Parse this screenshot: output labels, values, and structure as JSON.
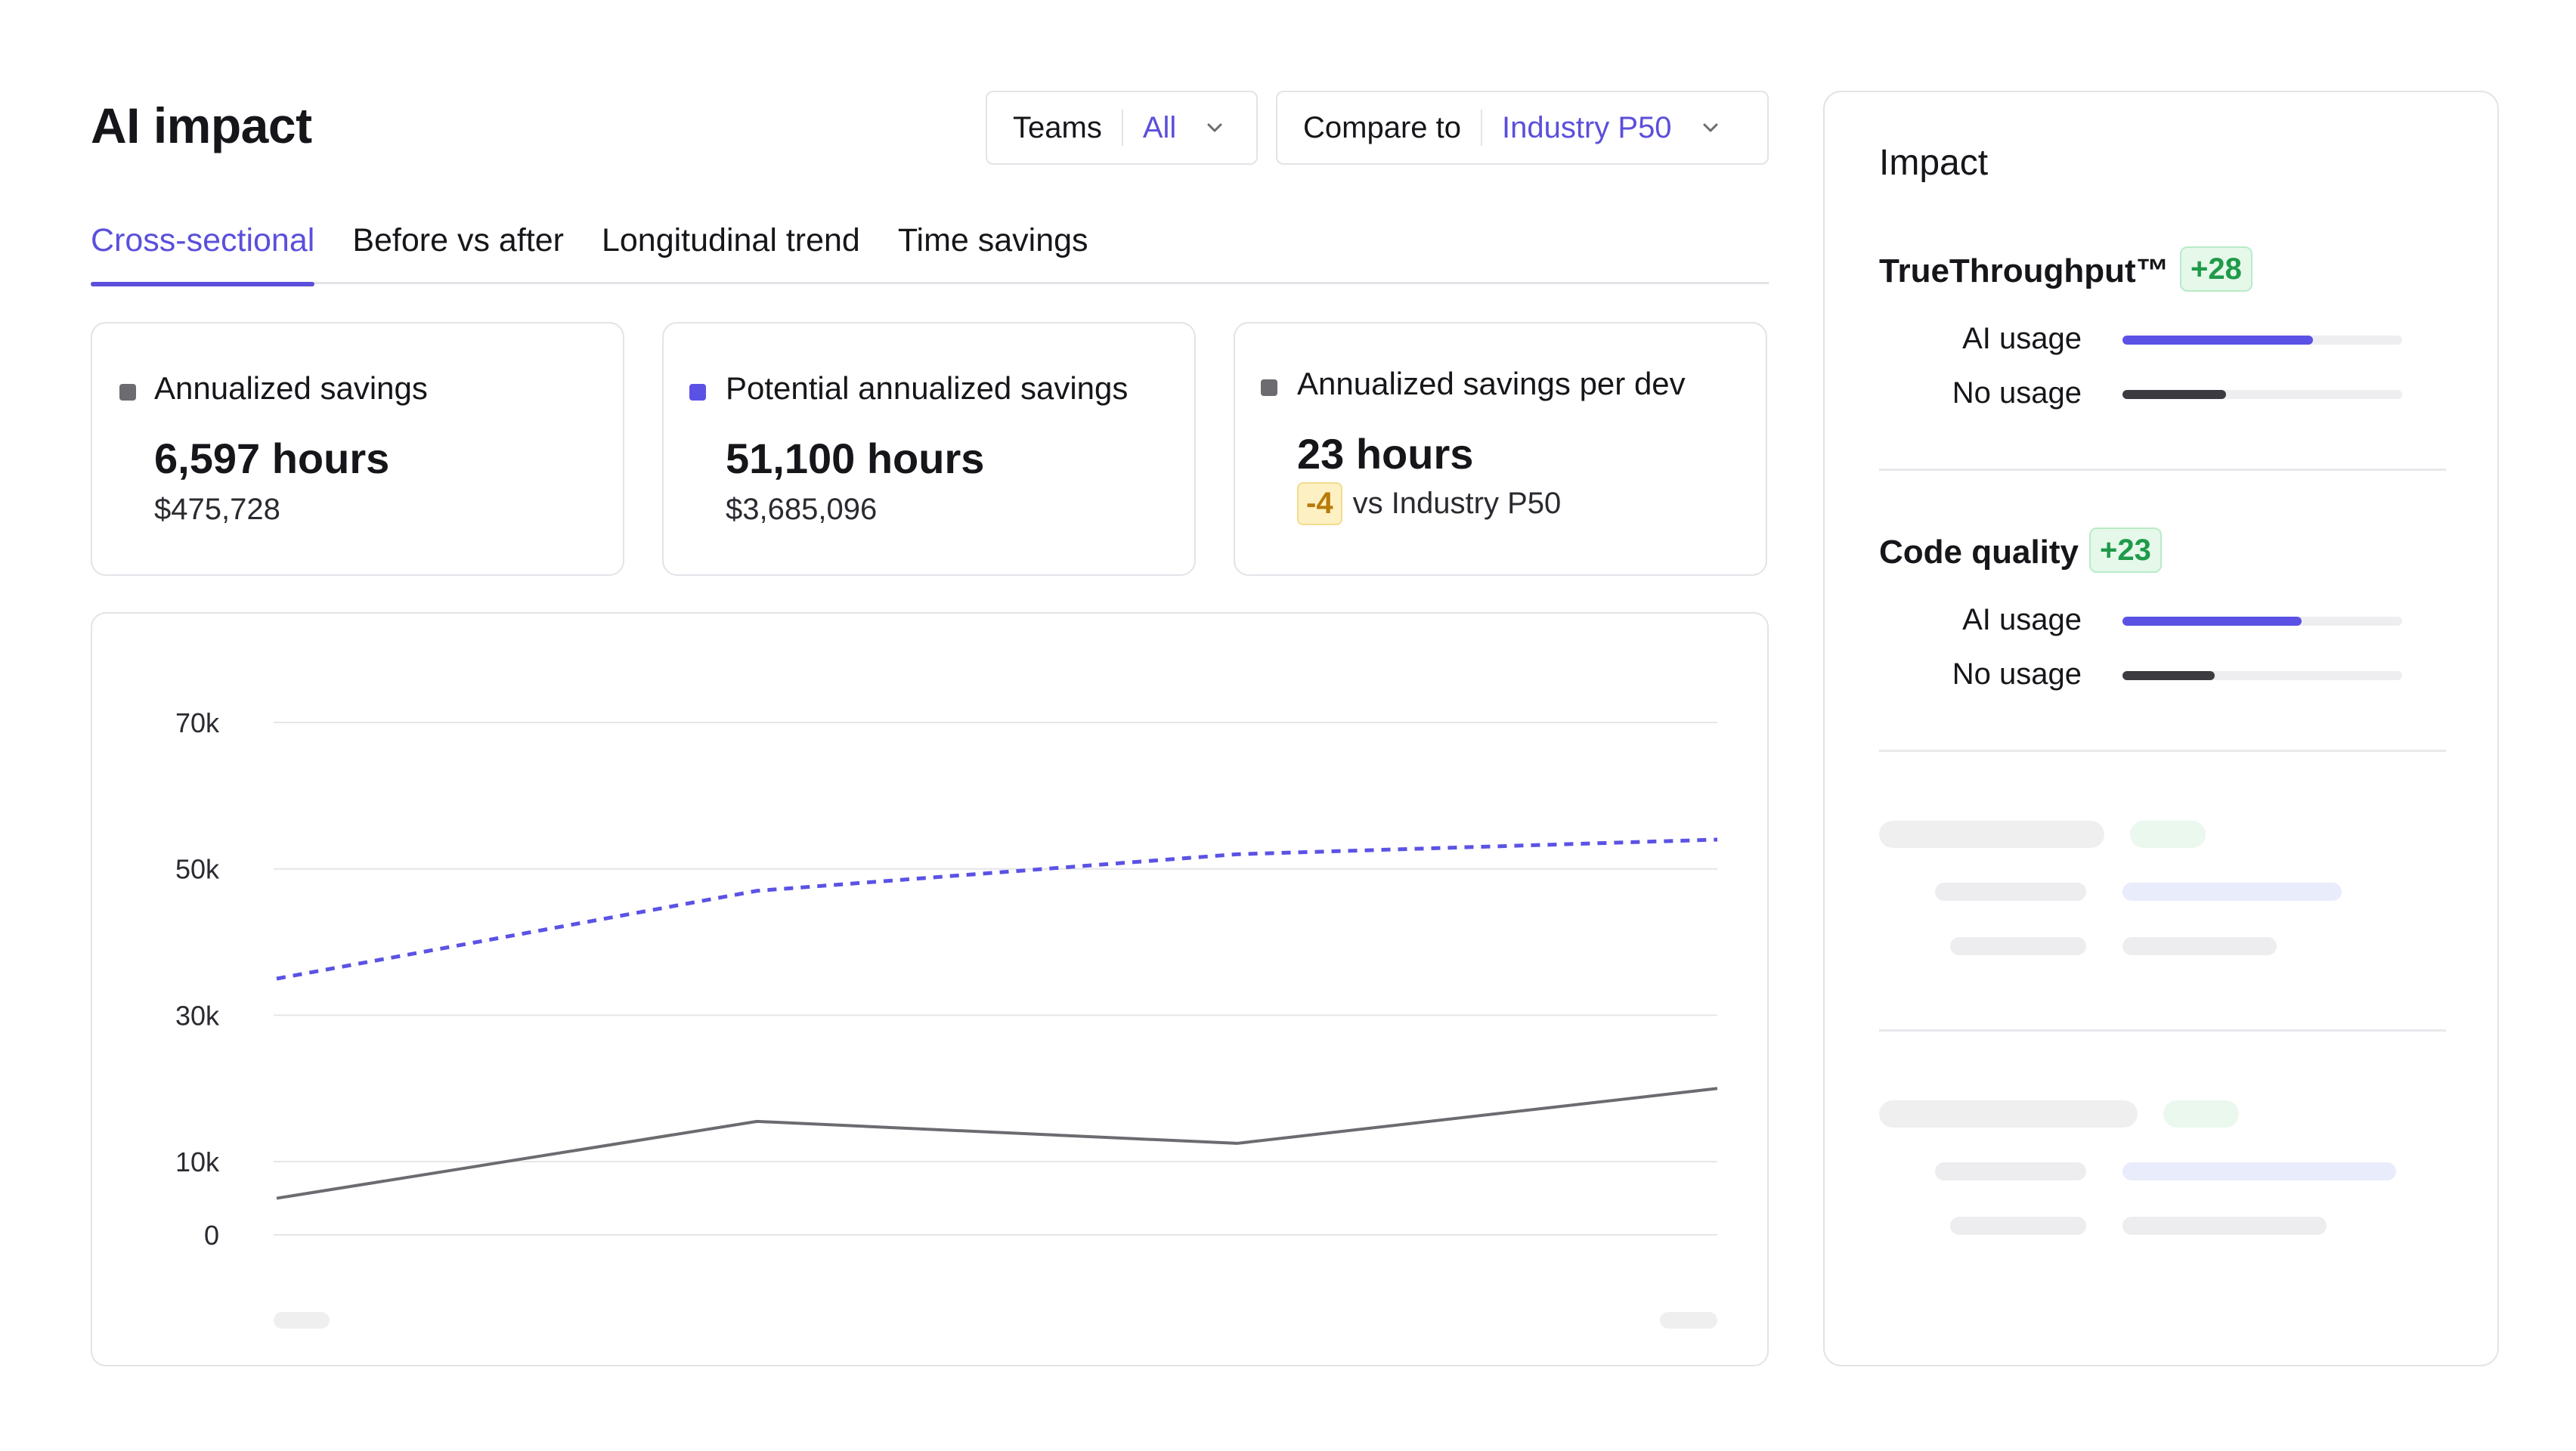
{
  "header": {
    "title": "AI impact",
    "teams_filter": {
      "label": "Teams",
      "value": "All"
    },
    "compare_filter": {
      "label": "Compare to",
      "value": "Industry P50"
    }
  },
  "tabs": [
    {
      "label": "Cross-sectional",
      "active": true
    },
    {
      "label": "Before vs after",
      "active": false
    },
    {
      "label": "Longitudinal trend",
      "active": false
    },
    {
      "label": "Time savings",
      "active": false
    }
  ],
  "cards": [
    {
      "label": "Annualized savings",
      "value": "6,597 hours",
      "sub": "$475,728",
      "marker_color": "#6b6b70"
    },
    {
      "label": "Potential annualized savings",
      "value": "51,100 hours",
      "sub": "$3,685,096",
      "marker_color": "#5b52e5"
    },
    {
      "label": "Annualized savings per dev",
      "value": "23 hours",
      "delta": "-4",
      "sub": "vs Industry P50",
      "marker_color": "#6b6b70"
    }
  ],
  "chart_data": {
    "type": "line",
    "x": [
      1,
      2,
      3,
      4
    ],
    "yticks": [
      "70k",
      "50k",
      "30k",
      "10k",
      "0"
    ],
    "ylim": [
      -5000,
      75000
    ],
    "grid": true,
    "series": [
      {
        "style": "dashed",
        "color": "#5b52e5",
        "values": [
          35000,
          47000,
          52000,
          54000
        ]
      },
      {
        "style": "solid",
        "color": "#6b6b70",
        "values": [
          5000,
          15500,
          12500,
          20000
        ]
      }
    ]
  },
  "impact": {
    "title": "Impact",
    "metrics": [
      {
        "name": "TrueThroughput™",
        "delta": "+28",
        "bars": [
          {
            "label": "AI usage",
            "fraction": 0.68
          },
          {
            "label": "No usage",
            "fraction": 0.37
          }
        ]
      },
      {
        "name": "Code quality",
        "delta": "+23",
        "bars": [
          {
            "label": "AI usage",
            "fraction": 0.64
          },
          {
            "label": "No usage",
            "fraction": 0.33
          }
        ]
      }
    ]
  },
  "colors": {
    "accent": "#5b4fdb",
    "positive": "#1f9a4a",
    "warning": "#b87a09"
  },
  "icons": {
    "dropdown": "chevron-down-icon"
  }
}
